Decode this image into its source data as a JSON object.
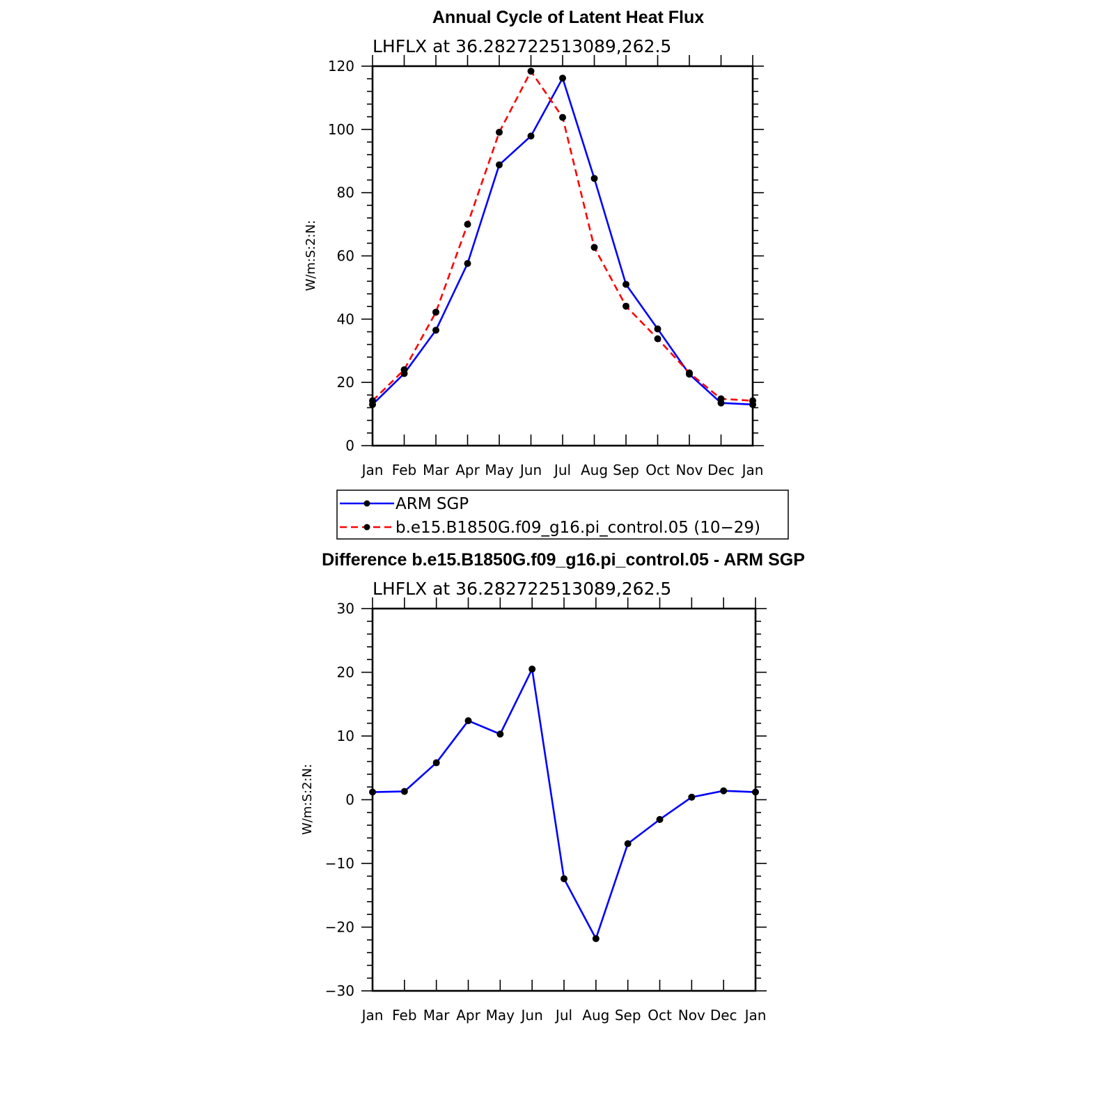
{
  "chart_data": [
    {
      "type": "line",
      "title": "Annual Cycle of Latent Heat Flux",
      "subtitle": "LHFLX at 36.282722513089,262.5",
      "ylabel": "W/m:S:2:N:",
      "xlabel": "",
      "categories": [
        "Jan",
        "Feb",
        "Mar",
        "Apr",
        "May",
        "Jun",
        "Jul",
        "Aug",
        "Sep",
        "Oct",
        "Nov",
        "Dec",
        "Jan"
      ],
      "ylim": [
        0,
        120
      ],
      "yticks": [
        "0",
        "20",
        "40",
        "60",
        "80",
        "100",
        "120"
      ],
      "ytick_values": [
        0,
        20,
        40,
        60,
        80,
        100,
        120
      ],
      "series": [
        {
          "name": "ARM SGP",
          "color": "#0000ff",
          "dash": "solid",
          "values": [
            13.0,
            22.8,
            36.5,
            57.6,
            88.8,
            97.9,
            116.2,
            84.5,
            51.0,
            36.9,
            22.6,
            13.5,
            13.0
          ]
        },
        {
          "name": "b.e15.B1850G.f09_g16.pi_control.05 (10−29)",
          "color": "#ff0000",
          "dash": "dashed",
          "values": [
            14.2,
            24.0,
            42.2,
            70.0,
            99.1,
            118.4,
            103.8,
            62.7,
            44.1,
            33.8,
            23.0,
            14.8,
            14.2
          ]
        }
      ]
    },
    {
      "type": "line",
      "title": "Difference b.e15.B1850G.f09_g16.pi_control.05 - ARM SGP",
      "subtitle": "LHFLX at 36.282722513089,262.5",
      "ylabel": "W/m:S:2:N:",
      "xlabel": "",
      "categories": [
        "Jan",
        "Feb",
        "Mar",
        "Apr",
        "May",
        "Jun",
        "Jul",
        "Aug",
        "Sep",
        "Oct",
        "Nov",
        "Dec",
        "Jan"
      ],
      "ylim": [
        -30,
        30
      ],
      "yticks": [
        "−30",
        "−20",
        "−10",
        "0",
        "10",
        "20",
        "30"
      ],
      "ytick_values": [
        -30,
        -20,
        -10,
        0,
        10,
        20,
        30
      ],
      "series": [
        {
          "name": "Difference",
          "color": "#0000ff",
          "dash": "solid",
          "values": [
            1.2,
            1.3,
            5.8,
            12.4,
            10.3,
            20.5,
            -12.4,
            -21.8,
            -6.9,
            -3.1,
            0.4,
            1.4,
            1.2
          ]
        }
      ]
    }
  ]
}
